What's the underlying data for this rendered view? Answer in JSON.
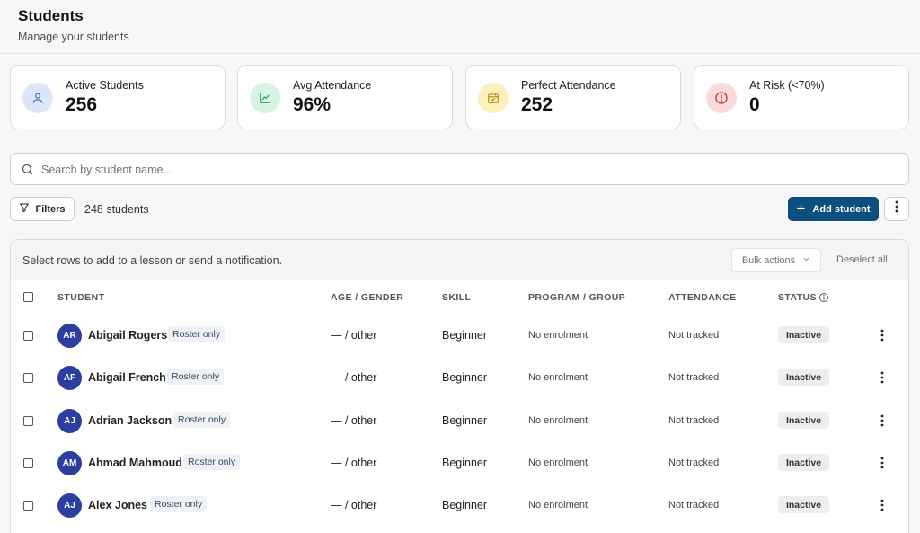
{
  "header": {
    "title": "Students",
    "subtitle": "Manage your students"
  },
  "stats": [
    {
      "label": "Active Students",
      "value": "256",
      "icon": "user-icon",
      "color": "#dbe7f9",
      "icon_color": "#3b6fc4"
    },
    {
      "label": "Avg Attendance",
      "value": "96%",
      "icon": "chart-line-icon",
      "color": "#d8f3e2",
      "icon_color": "#2f9a5a"
    },
    {
      "label": "Perfect Attendance",
      "value": "252",
      "icon": "calendar-check-icon",
      "color": "#fbf1bd",
      "icon_color": "#c08a0e"
    },
    {
      "label": "At Risk (<70%)",
      "value": "0",
      "icon": "alert-circle-icon",
      "color": "#fbdada",
      "icon_color": "#c8343a"
    }
  ],
  "search": {
    "placeholder": "Search by student name...",
    "value": ""
  },
  "toolbar": {
    "filters_label": "Filters",
    "student_count": "248 students",
    "add_student_label": "Add student"
  },
  "selection_bar": {
    "hint": "Select rows to add to a lesson or send a notification.",
    "bulk_actions_label": "Bulk actions",
    "deselect_all_label": "Deselect all"
  },
  "table": {
    "columns": [
      "Student",
      "Age / Gender",
      "Skill",
      "Program / Group",
      "Attendance",
      "Status"
    ],
    "rows": [
      {
        "initials": "AR",
        "name": "Abigail Rogers",
        "badge": "Roster only",
        "age_gender": "— / other",
        "skill": "Beginner",
        "program": "No enrolment",
        "attendance": "Not tracked",
        "status": "Inactive"
      },
      {
        "initials": "AF",
        "name": "Abigail French",
        "badge": "Roster only",
        "age_gender": "— / other",
        "skill": "Beginner",
        "program": "No enrolment",
        "attendance": "Not tracked",
        "status": "Inactive"
      },
      {
        "initials": "AJ",
        "name": "Adrian Jackson",
        "badge": "Roster only",
        "age_gender": "— / other",
        "skill": "Beginner",
        "program": "No enrolment",
        "attendance": "Not tracked",
        "status": "Inactive"
      },
      {
        "initials": "AM",
        "name": "Ahmad Mahmoud",
        "badge": "Roster only",
        "age_gender": "— / other",
        "skill": "Beginner",
        "program": "No enrolment",
        "attendance": "Not tracked",
        "status": "Inactive"
      },
      {
        "initials": "AJ",
        "name": "Alex Jones",
        "badge": "Roster only",
        "age_gender": "— / other",
        "skill": "Beginner",
        "program": "No enrolment",
        "attendance": "Not tracked",
        "status": "Inactive"
      }
    ]
  },
  "colors": {
    "primary": "#0b4f7e",
    "avatar": "#2a3f9e"
  }
}
